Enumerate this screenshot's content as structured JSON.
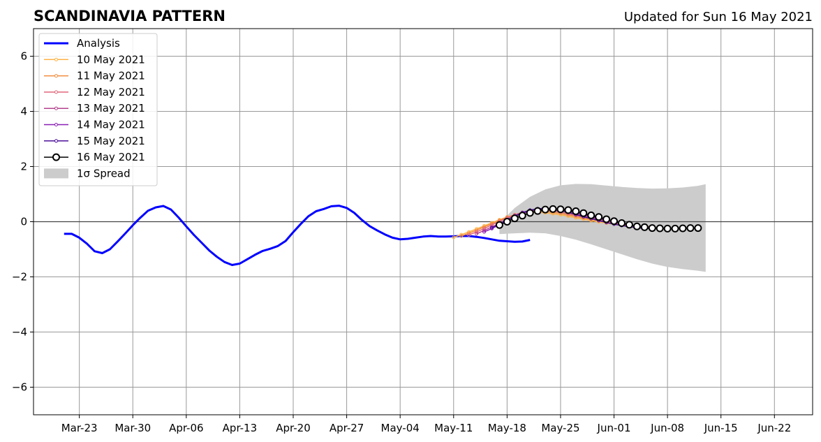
{
  "chart_data": {
    "type": "line",
    "title": "SCANDINAVIA PATTERN",
    "subtitle": "Updated for Sun 16 May 2021",
    "xlabel": "",
    "ylabel": "",
    "ylim": [
      -7,
      7
    ],
    "yticks": [
      -6,
      -4,
      -2,
      0,
      2,
      4,
      6
    ],
    "ytick_labels": [
      "−6",
      "−4",
      "−2",
      "0",
      "2",
      "4",
      "6"
    ],
    "xlim": [
      "2021-03-17",
      "2021-06-27"
    ],
    "xticks": [
      "2021-03-23",
      "2021-03-30",
      "2021-04-06",
      "2021-04-13",
      "2021-04-20",
      "2021-04-27",
      "2021-05-04",
      "2021-05-11",
      "2021-05-18",
      "2021-05-25",
      "2021-06-01",
      "2021-06-08",
      "2021-06-15",
      "2021-06-22"
    ],
    "xtick_labels": [
      "Mar-23",
      "Mar-30",
      "Apr-06",
      "Apr-13",
      "Apr-20",
      "Apr-27",
      "May-04",
      "May-11",
      "May-18",
      "May-25",
      "Jun-01",
      "Jun-08",
      "Jun-15",
      "Jun-22"
    ],
    "grid": true,
    "legend_position": "top-left",
    "analysis": {
      "name": "Analysis",
      "color": "#0000ff",
      "x_start": "2021-03-21",
      "values": [
        -0.44,
        -0.44,
        -0.58,
        -0.8,
        -1.07,
        -1.14,
        -1.0,
        -0.72,
        -0.43,
        -0.13,
        0.15,
        0.4,
        0.52,
        0.57,
        0.44,
        0.15,
        -0.17,
        -0.48,
        -0.76,
        -1.04,
        -1.27,
        -1.46,
        -1.57,
        -1.52,
        -1.36,
        -1.2,
        -1.06,
        -0.98,
        -0.88,
        -0.7,
        -0.38,
        -0.08,
        0.2,
        0.38,
        0.46,
        0.56,
        0.58,
        0.5,
        0.32,
        0.06,
        -0.16,
        -0.32,
        -0.46,
        -0.58,
        -0.64,
        -0.62,
        -0.58,
        -0.54,
        -0.52,
        -0.54,
        -0.54,
        -0.53,
        -0.52,
        -0.52,
        -0.55,
        -0.59,
        -0.64,
        -0.69,
        -0.71,
        -0.73,
        -0.72,
        -0.66
      ]
    },
    "forecasts": [
      {
        "name": "10 May 2021",
        "color": "#ffb347",
        "x_start": "2021-05-11",
        "values": [
          -0.57,
          -0.47,
          -0.37,
          -0.26,
          -0.15,
          -0.04,
          0.07,
          0.17,
          0.25,
          0.31,
          0.34,
          0.34,
          0.32,
          0.29,
          0.25,
          0.2,
          0.14,
          0.09,
          0.04,
          -0.01,
          -0.05,
          -0.09,
          -0.12,
          -0.14,
          -0.16,
          -0.18,
          -0.19
        ]
      },
      {
        "name": "11 May 2021",
        "color": "#f28b3c",
        "x_start": "2021-05-12",
        "values": [
          -0.52,
          -0.42,
          -0.31,
          -0.19,
          -0.07,
          0.05,
          0.16,
          0.25,
          0.32,
          0.36,
          0.38,
          0.37,
          0.34,
          0.3,
          0.25,
          0.19,
          0.13,
          0.08,
          0.03,
          -0.02,
          -0.06,
          -0.1,
          -0.13,
          -0.15,
          -0.17,
          -0.18
        ]
      },
      {
        "name": "12 May 2021",
        "color": "#e0667a",
        "x_start": "2021-05-13",
        "values": [
          -0.48,
          -0.37,
          -0.25,
          -0.12,
          0.01,
          0.14,
          0.25,
          0.34,
          0.4,
          0.43,
          0.42,
          0.39,
          0.35,
          0.29,
          0.23,
          0.17,
          0.11,
          0.05,
          0.0,
          -0.05,
          -0.09,
          -0.12,
          -0.15,
          -0.17,
          -0.19
        ]
      },
      {
        "name": "13 May 2021",
        "color": "#b4418e",
        "x_start": "2021-05-14",
        "values": [
          -0.44,
          -0.32,
          -0.19,
          -0.06,
          0.08,
          0.21,
          0.32,
          0.4,
          0.45,
          0.46,
          0.44,
          0.4,
          0.35,
          0.28,
          0.22,
          0.15,
          0.09,
          0.03,
          -0.03,
          -0.08,
          -0.12,
          -0.16,
          -0.19,
          -0.21
        ]
      },
      {
        "name": "14 May 2021",
        "color": "#8a1fb5",
        "x_start": "2021-05-15",
        "values": [
          -0.37,
          -0.25,
          -0.11,
          0.03,
          0.17,
          0.29,
          0.39,
          0.45,
          0.48,
          0.47,
          0.44,
          0.39,
          0.33,
          0.26,
          0.19,
          0.12,
          0.06,
          -0.01,
          -0.07,
          -0.12,
          -0.17,
          -0.21,
          -0.24
        ]
      },
      {
        "name": "15 May 2021",
        "color": "#4b0f9a",
        "x_start": "2021-05-16",
        "values": [
          -0.22,
          -0.08,
          0.07,
          0.21,
          0.33,
          0.42,
          0.47,
          0.48,
          0.45,
          0.4,
          0.34,
          0.26,
          0.18,
          0.11,
          0.04,
          -0.03,
          -0.09,
          -0.14,
          -0.18,
          -0.22,
          -0.24,
          -0.25
        ]
      }
    ],
    "latest": {
      "name": "16 May 2021",
      "color": "#000000",
      "x_start": "2021-05-17",
      "values": [
        -0.12,
        0.0,
        0.12,
        0.22,
        0.32,
        0.39,
        0.44,
        0.46,
        0.45,
        0.42,
        0.38,
        0.31,
        0.23,
        0.17,
        0.09,
        0.02,
        -0.05,
        -0.11,
        -0.17,
        -0.2,
        -0.23,
        -0.24,
        -0.25,
        -0.25,
        -0.24,
        -0.23,
        -0.23
      ]
    },
    "spread": {
      "name": "1σ Spread",
      "color": "#cccccc",
      "x": [
        "2021-05-17",
        "2021-05-19",
        "2021-05-21",
        "2021-05-23",
        "2021-05-25",
        "2021-05-27",
        "2021-05-29",
        "2021-05-31",
        "2021-06-02",
        "2021-06-04",
        "2021-06-06",
        "2021-06-08",
        "2021-06-10",
        "2021-06-12",
        "2021-06-13"
      ],
      "upper": [
        -0.05,
        0.5,
        0.9,
        1.17,
        1.32,
        1.37,
        1.36,
        1.31,
        1.26,
        1.22,
        1.2,
        1.21,
        1.24,
        1.3,
        1.36
      ],
      "lower": [
        -0.45,
        -0.42,
        -0.4,
        -0.42,
        -0.52,
        -0.65,
        -0.82,
        -1.0,
        -1.18,
        -1.36,
        -1.52,
        -1.64,
        -1.72,
        -1.78,
        -1.82
      ]
    }
  }
}
